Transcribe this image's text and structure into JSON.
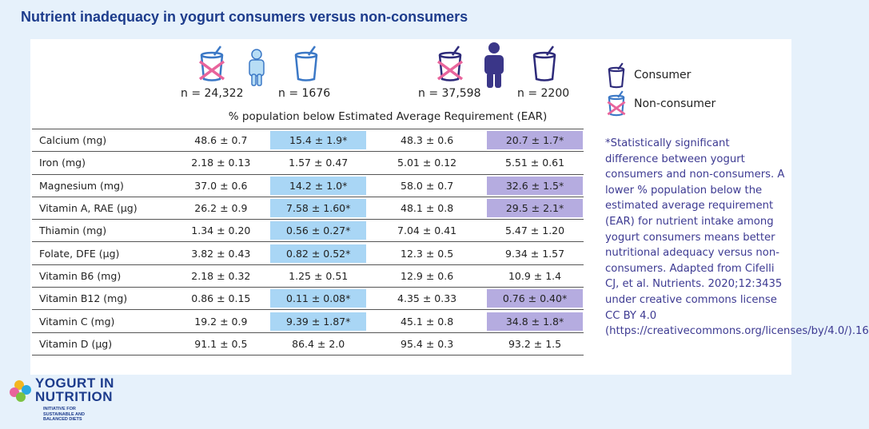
{
  "title": "Nutrient inadequacy in yogurt consumers versus non-consumers",
  "groups": {
    "children_nonconsumer_n": "n = 24,322",
    "children_consumer_n": "n = 1676",
    "adults_nonconsumer_n": "n = 37,598",
    "adults_consumer_n": "n = 2200"
  },
  "ear_header": "% population below Estimated Average Requirement (EAR)",
  "legend": {
    "consumer": "Consumer",
    "non_consumer": "Non-consumer"
  },
  "colors": {
    "children_significant": "#a9d6f5",
    "adults_significant": "#b5ace0",
    "title": "#1d3c8c",
    "footnote": "#3d3a92"
  },
  "chart_data": {
    "type": "table",
    "title": "Nutrient inadequacy in yogurt consumers versus non-consumers",
    "columns": [
      "Children non-consumers",
      "Children consumers",
      "Adults non-consumers",
      "Adults consumers"
    ],
    "rows": [
      {
        "nutrient": "Calcium (mg)",
        "values": [
          "48.6 ± 0.7",
          "15.4 ± 1.9*",
          "48.3 ± 0.6",
          "20.7 ± 1.7*"
        ],
        "sig": [
          false,
          true,
          false,
          true
        ]
      },
      {
        "nutrient": "Iron (mg)",
        "values": [
          "2.18 ± 0.13",
          "1.57 ± 0.47",
          "5.01 ± 0.12",
          "5.51 ± 0.61"
        ],
        "sig": [
          false,
          false,
          false,
          false
        ]
      },
      {
        "nutrient": "Magnesium (mg)",
        "values": [
          "37.0 ± 0.6",
          "14.2 ± 1.0*",
          "58.0 ± 0.7",
          "32.6 ± 1.5*"
        ],
        "sig": [
          false,
          true,
          false,
          true
        ]
      },
      {
        "nutrient": "Vitamin A, RAE (µg)",
        "values": [
          "26.2 ± 0.9",
          "7.58 ± 1.60*",
          "48.1 ± 0.8",
          "29.5 ± 2.1*"
        ],
        "sig": [
          false,
          true,
          false,
          true
        ]
      },
      {
        "nutrient": "Thiamin (mg)",
        "values": [
          "1.34 ± 0.20",
          "0.56 ± 0.27*",
          "7.04 ± 0.41",
          "5.47 ± 1.20"
        ],
        "sig": [
          false,
          true,
          false,
          false
        ]
      },
      {
        "nutrient": "Folate, DFE (µg)",
        "values": [
          "3.82 ± 0.43",
          "0.82 ± 0.52*",
          "12.3 ± 0.5",
          "9.34 ± 1.57"
        ],
        "sig": [
          false,
          true,
          false,
          false
        ]
      },
      {
        "nutrient": "Vitamin B6 (mg)",
        "values": [
          "2.18 ± 0.32",
          "1.25 ± 0.51",
          "12.9 ± 0.6",
          "10.9 ± 1.4"
        ],
        "sig": [
          false,
          false,
          false,
          false
        ]
      },
      {
        "nutrient": "Vitamin B12 (mg)",
        "values": [
          "0.86 ± 0.15",
          "0.11 ± 0.08*",
          "4.35 ± 0.33",
          "0.76 ± 0.40*"
        ],
        "sig": [
          false,
          true,
          false,
          true
        ]
      },
      {
        "nutrient": "Vitamin C (mg)",
        "values": [
          "19.2 ± 0.9",
          "9.39 ± 1.87*",
          "45.1 ± 0.8",
          "34.8 ± 1.8*"
        ],
        "sig": [
          false,
          true,
          false,
          true
        ]
      },
      {
        "nutrient": "Vitamin D (µg)",
        "values": [
          "91.1 ± 0.5",
          "86.4 ± 2.0",
          "95.4 ± 0.3",
          "93.2 ± 1.5"
        ],
        "sig": [
          false,
          false,
          false,
          false
        ]
      }
    ]
  },
  "footnote": "*Statistically significant difference between yogurt consumers and non-consumers. A lower % population below the estimated average requirement (EAR) for nutrient intake among yogurt consumers means better nutritional adequacy versus non-consumers. Adapted from Cifelli CJ, et al. Nutrients. 2020;12:3435 under creative commons license CC BY 4.0 (https://creativecommons.org/licenses/by/4.0/).16",
  "logo": {
    "line1": "YOGURT IN",
    "line2": "NUTRITION",
    "tagline": "INITIATIVE FOR SUSTAINABLE AND BALANCED DIETS"
  }
}
